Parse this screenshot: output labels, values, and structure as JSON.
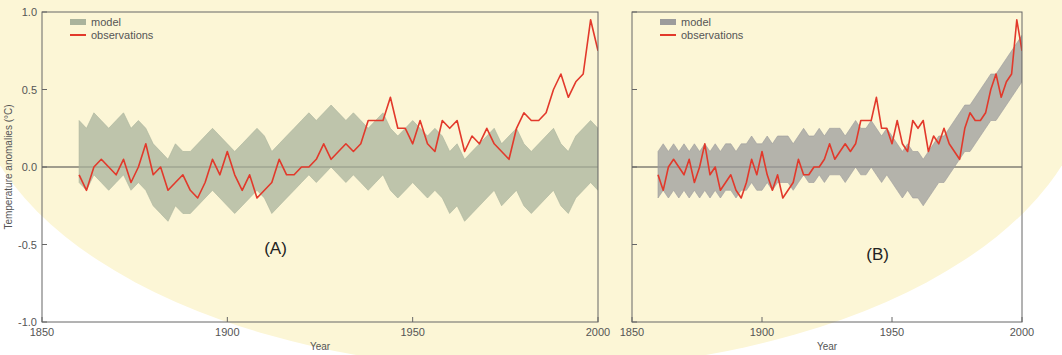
{
  "chart_data": [
    {
      "type": "line",
      "title": "(A)",
      "x_label": "Year",
      "y_label": "Temperature anomalies (°C)",
      "x": [
        1860,
        1862,
        1864,
        1866,
        1868,
        1870,
        1872,
        1874,
        1876,
        1878,
        1880,
        1882,
        1884,
        1886,
        1888,
        1890,
        1892,
        1894,
        1896,
        1898,
        1900,
        1902,
        1904,
        1906,
        1908,
        1910,
        1912,
        1914,
        1916,
        1918,
        1920,
        1922,
        1924,
        1926,
        1928,
        1930,
        1932,
        1934,
        1936,
        1938,
        1940,
        1942,
        1944,
        1946,
        1948,
        1950,
        1952,
        1954,
        1956,
        1958,
        1960,
        1962,
        1964,
        1966,
        1968,
        1970,
        1972,
        1974,
        1976,
        1978,
        1980,
        1982,
        1984,
        1986,
        1988,
        1990,
        1992,
        1994,
        1996,
        1998,
        2000
      ],
      "series": [
        {
          "name": "model",
          "type": "area",
          "color": "#aab39c",
          "lower": [
            -0.1,
            -0.15,
            -0.05,
            -0.1,
            -0.15,
            -0.1,
            -0.05,
            -0.15,
            -0.1,
            -0.15,
            -0.25,
            -0.3,
            -0.35,
            -0.25,
            -0.3,
            -0.3,
            -0.25,
            -0.2,
            -0.15,
            -0.2,
            -0.25,
            -0.3,
            -0.25,
            -0.2,
            -0.15,
            -0.2,
            -0.3,
            -0.25,
            -0.2,
            -0.15,
            -0.1,
            -0.05,
            -0.1,
            -0.05,
            0.0,
            -0.05,
            -0.1,
            -0.05,
            -0.1,
            -0.15,
            -0.1,
            -0.05,
            -0.15,
            -0.2,
            -0.15,
            -0.1,
            -0.15,
            -0.2,
            -0.15,
            -0.2,
            -0.3,
            -0.25,
            -0.35,
            -0.3,
            -0.25,
            -0.2,
            -0.15,
            -0.25,
            -0.2,
            -0.15,
            -0.25,
            -0.3,
            -0.25,
            -0.2,
            -0.15,
            -0.25,
            -0.3,
            -0.2,
            -0.15,
            -0.1,
            -0.15
          ],
          "upper": [
            0.3,
            0.25,
            0.35,
            0.3,
            0.25,
            0.3,
            0.35,
            0.25,
            0.3,
            0.25,
            0.15,
            0.1,
            0.05,
            0.15,
            0.1,
            0.1,
            0.15,
            0.2,
            0.25,
            0.2,
            0.15,
            0.1,
            0.15,
            0.2,
            0.25,
            0.2,
            0.1,
            0.15,
            0.2,
            0.25,
            0.3,
            0.35,
            0.3,
            0.35,
            0.4,
            0.35,
            0.3,
            0.35,
            0.3,
            0.25,
            0.3,
            0.35,
            0.25,
            0.2,
            0.25,
            0.3,
            0.25,
            0.2,
            0.25,
            0.2,
            0.1,
            0.15,
            0.05,
            0.1,
            0.15,
            0.2,
            0.25,
            0.15,
            0.2,
            0.25,
            0.15,
            0.1,
            0.15,
            0.2,
            0.25,
            0.15,
            0.1,
            0.2,
            0.25,
            0.3,
            0.25
          ]
        },
        {
          "name": "observations",
          "color": "#e2392b",
          "values": [
            -0.05,
            -0.15,
            0.0,
            0.05,
            0.0,
            -0.05,
            0.05,
            -0.1,
            0.0,
            0.15,
            -0.05,
            0.0,
            -0.15,
            -0.1,
            -0.05,
            -0.15,
            -0.2,
            -0.1,
            0.05,
            -0.05,
            0.1,
            -0.05,
            -0.15,
            -0.05,
            -0.2,
            -0.15,
            -0.1,
            0.05,
            -0.05,
            -0.05,
            0.0,
            0.0,
            0.05,
            0.15,
            0.05,
            0.1,
            0.15,
            0.1,
            0.15,
            0.3,
            0.3,
            0.3,
            0.45,
            0.25,
            0.25,
            0.15,
            0.3,
            0.15,
            0.1,
            0.3,
            0.25,
            0.3,
            0.1,
            0.2,
            0.15,
            0.25,
            0.15,
            0.1,
            0.05,
            0.25,
            0.35,
            0.3,
            0.3,
            0.35,
            0.5,
            0.6,
            0.45,
            0.55,
            0.6,
            0.95,
            0.75
          ]
        }
      ],
      "xlim": [
        1850,
        2000
      ],
      "xticks": [
        1850,
        1900,
        1950,
        2000
      ],
      "ylim": [
        -1,
        1
      ],
      "yticks": [
        {
          "value": -1,
          "label": "-1.0"
        },
        -0.5,
        {
          "value": 0,
          "label": "0.0"
        },
        0.5,
        {
          "value": 1,
          "label": "1.0"
        }
      ],
      "legend": "upper left"
    },
    {
      "type": "line",
      "title": "(B)",
      "x_label": "Year",
      "x": [
        1860,
        1862,
        1864,
        1866,
        1868,
        1870,
        1872,
        1874,
        1876,
        1878,
        1880,
        1882,
        1884,
        1886,
        1888,
        1890,
        1892,
        1894,
        1896,
        1898,
        1900,
        1902,
        1904,
        1906,
        1908,
        1910,
        1912,
        1914,
        1916,
        1918,
        1920,
        1922,
        1924,
        1926,
        1928,
        1930,
        1932,
        1934,
        1936,
        1938,
        1940,
        1942,
        1944,
        1946,
        1948,
        1950,
        1952,
        1954,
        1956,
        1958,
        1960,
        1962,
        1964,
        1966,
        1968,
        1970,
        1972,
        1974,
        1976,
        1978,
        1980,
        1982,
        1984,
        1986,
        1988,
        1990,
        1992,
        1994,
        1996,
        1998,
        2000
      ],
      "series": [
        {
          "name": "model",
          "type": "area",
          "color": "#9c9c9c",
          "lower": [
            -0.2,
            -0.15,
            -0.2,
            -0.15,
            -0.2,
            -0.15,
            -0.2,
            -0.15,
            -0.2,
            -0.15,
            -0.2,
            -0.15,
            -0.2,
            -0.15,
            -0.15,
            -0.2,
            -0.15,
            -0.15,
            -0.1,
            -0.15,
            -0.15,
            -0.1,
            -0.15,
            -0.1,
            -0.1,
            -0.1,
            -0.15,
            -0.1,
            -0.05,
            -0.1,
            -0.1,
            -0.05,
            -0.1,
            -0.05,
            -0.05,
            -0.05,
            -0.1,
            -0.05,
            0.0,
            -0.05,
            -0.05,
            0.0,
            -0.05,
            -0.1,
            -0.05,
            -0.1,
            -0.15,
            -0.2,
            -0.15,
            -0.2,
            -0.2,
            -0.25,
            -0.2,
            -0.15,
            -0.1,
            -0.1,
            -0.05,
            0.0,
            0.05,
            0.1,
            0.1,
            0.15,
            0.2,
            0.25,
            0.3,
            0.3,
            0.35,
            0.4,
            0.45,
            0.5,
            0.55
          ],
          "upper": [
            0.1,
            0.15,
            0.1,
            0.15,
            0.1,
            0.15,
            0.1,
            0.15,
            0.1,
            0.15,
            0.1,
            0.15,
            0.1,
            0.15,
            0.15,
            0.1,
            0.15,
            0.15,
            0.2,
            0.15,
            0.15,
            0.2,
            0.15,
            0.2,
            0.2,
            0.2,
            0.15,
            0.2,
            0.25,
            0.2,
            0.2,
            0.25,
            0.2,
            0.25,
            0.25,
            0.25,
            0.2,
            0.25,
            0.3,
            0.25,
            0.25,
            0.3,
            0.25,
            0.2,
            0.25,
            0.2,
            0.15,
            0.1,
            0.15,
            0.1,
            0.1,
            0.05,
            0.1,
            0.15,
            0.2,
            0.2,
            0.25,
            0.3,
            0.35,
            0.4,
            0.4,
            0.45,
            0.5,
            0.55,
            0.6,
            0.6,
            0.65,
            0.7,
            0.75,
            0.8,
            0.85
          ]
        },
        {
          "name": "observations",
          "color": "#e2392b",
          "values": [
            -0.05,
            -0.15,
            0.0,
            0.05,
            0.0,
            -0.05,
            0.05,
            -0.1,
            0.0,
            0.15,
            -0.05,
            0.0,
            -0.15,
            -0.1,
            -0.05,
            -0.15,
            -0.2,
            -0.1,
            0.05,
            -0.05,
            0.1,
            -0.05,
            -0.15,
            -0.05,
            -0.2,
            -0.15,
            -0.1,
            0.05,
            -0.05,
            -0.05,
            0.0,
            0.0,
            0.05,
            0.15,
            0.05,
            0.1,
            0.15,
            0.1,
            0.15,
            0.3,
            0.3,
            0.3,
            0.45,
            0.25,
            0.25,
            0.15,
            0.3,
            0.15,
            0.1,
            0.3,
            0.25,
            0.3,
            0.1,
            0.2,
            0.15,
            0.25,
            0.15,
            0.1,
            0.05,
            0.25,
            0.35,
            0.3,
            0.3,
            0.35,
            0.5,
            0.6,
            0.45,
            0.55,
            0.6,
            0.95,
            0.75
          ]
        }
      ],
      "xlim": [
        1850,
        2000
      ],
      "xticks": [
        1850,
        1900,
        1950,
        2000
      ],
      "ylim": [
        -1,
        1
      ],
      "yticks": [
        -1,
        -0.5,
        0,
        0.5,
        1
      ],
      "tick_labels": "x",
      "legend": "upper left"
    }
  ]
}
